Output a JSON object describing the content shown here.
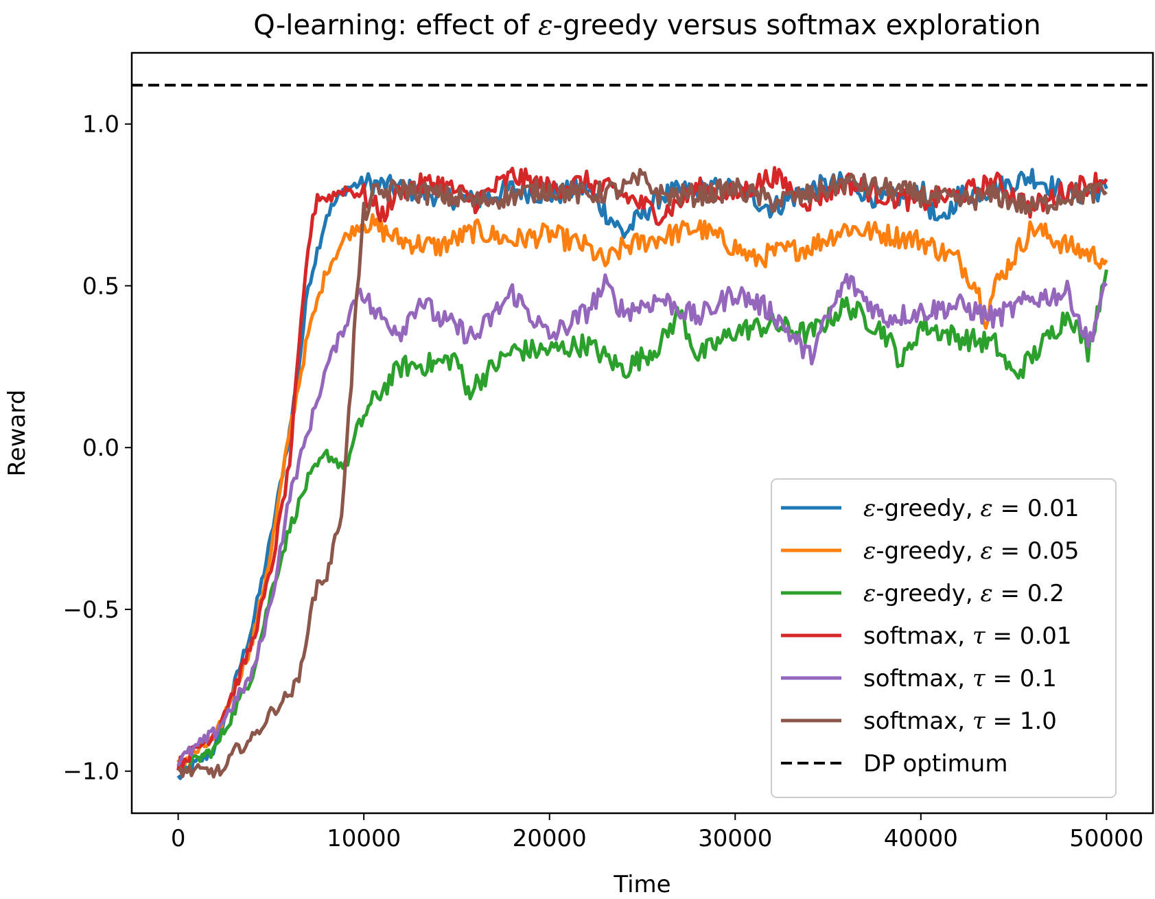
{
  "chart_data": {
    "type": "line",
    "title_prefix": "Q-learning: effect of ",
    "title_symbol": "ε",
    "title_suffix": "-greedy versus softmax exploration",
    "xlabel": "Time",
    "ylabel": "Reward",
    "xlim": [
      -2500,
      52500
    ],
    "ylim": [
      -1.13,
      1.22
    ],
    "xticks": [
      0,
      10000,
      20000,
      30000,
      40000,
      50000
    ],
    "xtick_labels": [
      "0",
      "10000",
      "20000",
      "30000",
      "40000",
      "50000"
    ],
    "yticks": [
      -1.0,
      -0.5,
      0.0,
      0.5,
      1.0
    ],
    "ytick_labels": [
      "−1.0",
      "−0.5",
      "0.0",
      "0.5",
      "1.0"
    ],
    "grid": false,
    "legend_position": "lower-right",
    "dp_optimum": {
      "name": "DP optimum",
      "value": 1.12,
      "color": "#000000",
      "style": "dashed"
    },
    "series": [
      {
        "name": "ε-greedy, ε = 0.01",
        "label_parts": [
          "ε",
          "-greedy, ",
          "ε",
          " = 0.01"
        ],
        "color": "#1f77b4",
        "x": [
          0,
          2000,
          4000,
          5000,
          6000,
          6500,
          7000,
          8000,
          9000,
          10000,
          12000,
          14000,
          16000,
          18000,
          20000,
          22000,
          24000,
          26000,
          28000,
          30000,
          32000,
          34000,
          36000,
          38000,
          40000,
          41000,
          42000,
          44000,
          46000,
          48000,
          50000
        ],
        "y": [
          -1.02,
          -0.93,
          -0.55,
          -0.28,
          0.05,
          0.25,
          0.5,
          0.72,
          0.8,
          0.82,
          0.8,
          0.78,
          0.76,
          0.8,
          0.78,
          0.8,
          0.66,
          0.78,
          0.8,
          0.8,
          0.74,
          0.8,
          0.82,
          0.76,
          0.8,
          0.68,
          0.78,
          0.8,
          0.84,
          0.78,
          0.8
        ]
      },
      {
        "name": "ε-greedy, ε = 0.05",
        "label_parts": [
          "ε",
          "-greedy, ",
          "ε",
          " = 0.05"
        ],
        "color": "#ff7f0e",
        "x": [
          0,
          2000,
          4000,
          5000,
          6000,
          7000,
          8000,
          9000,
          10000,
          12000,
          14000,
          16000,
          18000,
          20000,
          22000,
          23000,
          24000,
          26000,
          28000,
          30000,
          31000,
          32000,
          34000,
          36000,
          38000,
          40000,
          42000,
          43000,
          43500,
          44000,
          46000,
          48000,
          50000
        ],
        "y": [
          -0.98,
          -0.9,
          -0.6,
          -0.32,
          0.05,
          0.35,
          0.55,
          0.65,
          0.7,
          0.64,
          0.62,
          0.67,
          0.64,
          0.66,
          0.62,
          0.57,
          0.62,
          0.65,
          0.68,
          0.62,
          0.58,
          0.6,
          0.62,
          0.68,
          0.66,
          0.64,
          0.58,
          0.5,
          0.4,
          0.5,
          0.68,
          0.62,
          0.58
        ]
      },
      {
        "name": "ε-greedy, ε = 0.2",
        "label_parts": [
          "ε",
          "-greedy, ",
          "ε",
          " = 0.2"
        ],
        "color": "#2ca02c",
        "x": [
          0,
          2000,
          4000,
          5000,
          6000,
          7000,
          8000,
          9000,
          9500,
          10000,
          11000,
          12000,
          14000,
          15000,
          15500,
          17000,
          18000,
          20000,
          22000,
          24000,
          26000,
          27000,
          28000,
          30000,
          32000,
          34000,
          36000,
          38000,
          39000,
          40000,
          42000,
          44000,
          45000,
          46000,
          48000,
          49000,
          50000
        ],
        "y": [
          -1.0,
          -0.93,
          -0.7,
          -0.45,
          -0.25,
          -0.1,
          -0.02,
          -0.06,
          0.02,
          0.1,
          0.18,
          0.25,
          0.26,
          0.28,
          0.17,
          0.25,
          0.3,
          0.3,
          0.32,
          0.24,
          0.32,
          0.42,
          0.28,
          0.36,
          0.38,
          0.35,
          0.44,
          0.36,
          0.26,
          0.38,
          0.34,
          0.32,
          0.22,
          0.28,
          0.42,
          0.3,
          0.55
        ]
      },
      {
        "name": "softmax, τ = 0.01",
        "label_parts": [
          "softmax, ",
          "τ",
          " = 0.01"
        ],
        "color": "#d62728",
        "x": [
          0,
          2000,
          3000,
          4000,
          5000,
          6000,
          6500,
          7000,
          7500,
          8000,
          9000,
          10000,
          11000,
          12000,
          14000,
          16000,
          18000,
          20000,
          22000,
          24000,
          26000,
          28000,
          30000,
          32000,
          34000,
          36000,
          38000,
          40000,
          42000,
          44000,
          46000,
          48000,
          50000
        ],
        "y": [
          -0.98,
          -0.88,
          -0.75,
          -0.6,
          -0.38,
          -0.05,
          0.3,
          0.62,
          0.78,
          0.77,
          0.8,
          0.78,
          0.72,
          0.8,
          0.82,
          0.76,
          0.84,
          0.8,
          0.82,
          0.78,
          0.72,
          0.8,
          0.78,
          0.84,
          0.76,
          0.82,
          0.78,
          0.76,
          0.78,
          0.82,
          0.74,
          0.8,
          0.83
        ]
      },
      {
        "name": "softmax, τ = 0.1",
        "label_parts": [
          "softmax, ",
          "τ",
          " = 0.1"
        ],
        "color": "#9467bd",
        "x": [
          0,
          2000,
          4000,
          5000,
          6000,
          7000,
          8000,
          9000,
          9800,
          10500,
          12000,
          13000,
          14000,
          16000,
          18000,
          20000,
          22000,
          23000,
          24000,
          26000,
          28000,
          30000,
          32000,
          34000,
          36000,
          38000,
          40000,
          42000,
          44000,
          46000,
          48000,
          49000,
          50000
        ],
        "y": [
          -0.97,
          -0.88,
          -0.7,
          -0.48,
          -0.15,
          0.05,
          0.25,
          0.38,
          0.5,
          0.42,
          0.36,
          0.46,
          0.4,
          0.34,
          0.48,
          0.34,
          0.42,
          0.5,
          0.42,
          0.46,
          0.4,
          0.48,
          0.42,
          0.28,
          0.52,
          0.4,
          0.42,
          0.44,
          0.4,
          0.46,
          0.48,
          0.32,
          0.5
        ]
      },
      {
        "name": "softmax, τ = 1.0",
        "label_parts": [
          "softmax, ",
          "τ",
          " = 1.0"
        ],
        "color": "#8c564b",
        "x": [
          0,
          2500,
          3000,
          4000,
          5000,
          6000,
          6500,
          7000,
          7500,
          8000,
          8800,
          9200,
          9600,
          10000,
          10500,
          12000,
          14000,
          16000,
          18000,
          20000,
          22000,
          24000,
          25000,
          26000,
          28000,
          30000,
          32000,
          34000,
          36000,
          38000,
          40000,
          42000,
          44000,
          46000,
          48000,
          50000
        ],
        "y": [
          -1.0,
          -1.0,
          -0.94,
          -0.9,
          -0.82,
          -0.76,
          -0.72,
          -0.55,
          -0.42,
          -0.4,
          -0.2,
          0.1,
          0.45,
          0.72,
          0.78,
          0.8,
          0.78,
          0.76,
          0.78,
          0.8,
          0.78,
          0.8,
          0.83,
          0.78,
          0.78,
          0.8,
          0.76,
          0.78,
          0.82,
          0.8,
          0.78,
          0.76,
          0.78,
          0.74,
          0.78,
          0.79
        ]
      }
    ]
  }
}
